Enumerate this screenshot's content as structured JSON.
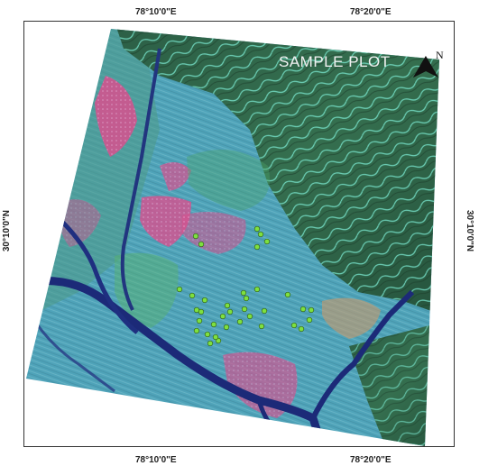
{
  "map": {
    "title": "SAMPLE PLOT",
    "north_arrow_label": "N",
    "graticule": {
      "top": [
        "78°10'0\"E",
        "78°20'0\"E"
      ],
      "bottom": [
        "78°10'0\"E",
        "78°20'0\"E"
      ],
      "left": [
        "30°10'0\"N"
      ],
      "right": [
        "30°10'0\"N"
      ]
    },
    "image_type": "false-colour satellite scene",
    "sample_point_count": 36,
    "colors": {
      "sample_point": "#7ee040",
      "river": "#1c2a78",
      "vegetation_hills": "#2f6a4a",
      "ridge_highlight": "#7ff0d8",
      "plain": "#4fa7bd",
      "settlement_pink": "#e2508f"
    }
  }
}
